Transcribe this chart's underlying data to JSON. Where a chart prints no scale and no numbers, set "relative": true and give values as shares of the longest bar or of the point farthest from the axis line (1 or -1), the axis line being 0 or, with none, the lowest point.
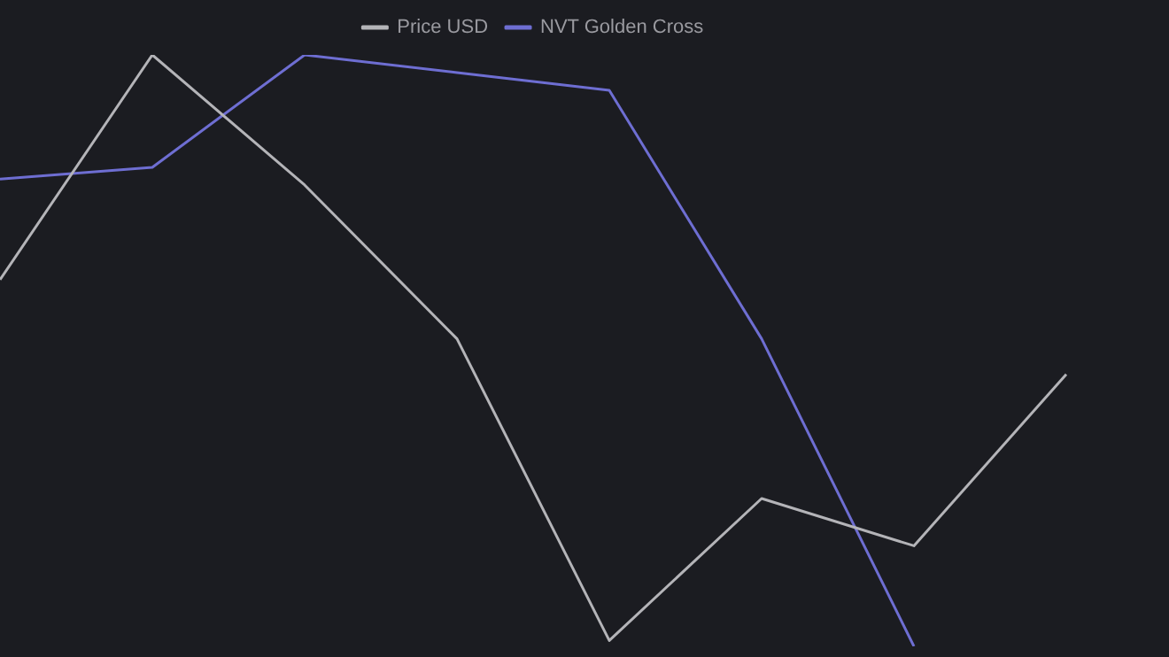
{
  "chart_data": {
    "type": "line",
    "relative": true,
    "legend": "top",
    "marker": "none",
    "categories": [
      null,
      null,
      null,
      null,
      null,
      null,
      null,
      null
    ],
    "series": [
      {
        "name": "Price USD",
        "color": "#b4b4b8",
        "values": [
          0.62,
          1,
          0.78,
          0.52,
          0.01,
          0.25,
          0.17,
          0.46
        ]
      },
      {
        "name": "NVT Golden Cross",
        "color": "#6e6ed2",
        "values": [
          0.79,
          0.81,
          1,
          0.97,
          0.94,
          0.52,
          0,
          null
        ]
      }
    ]
  }
}
